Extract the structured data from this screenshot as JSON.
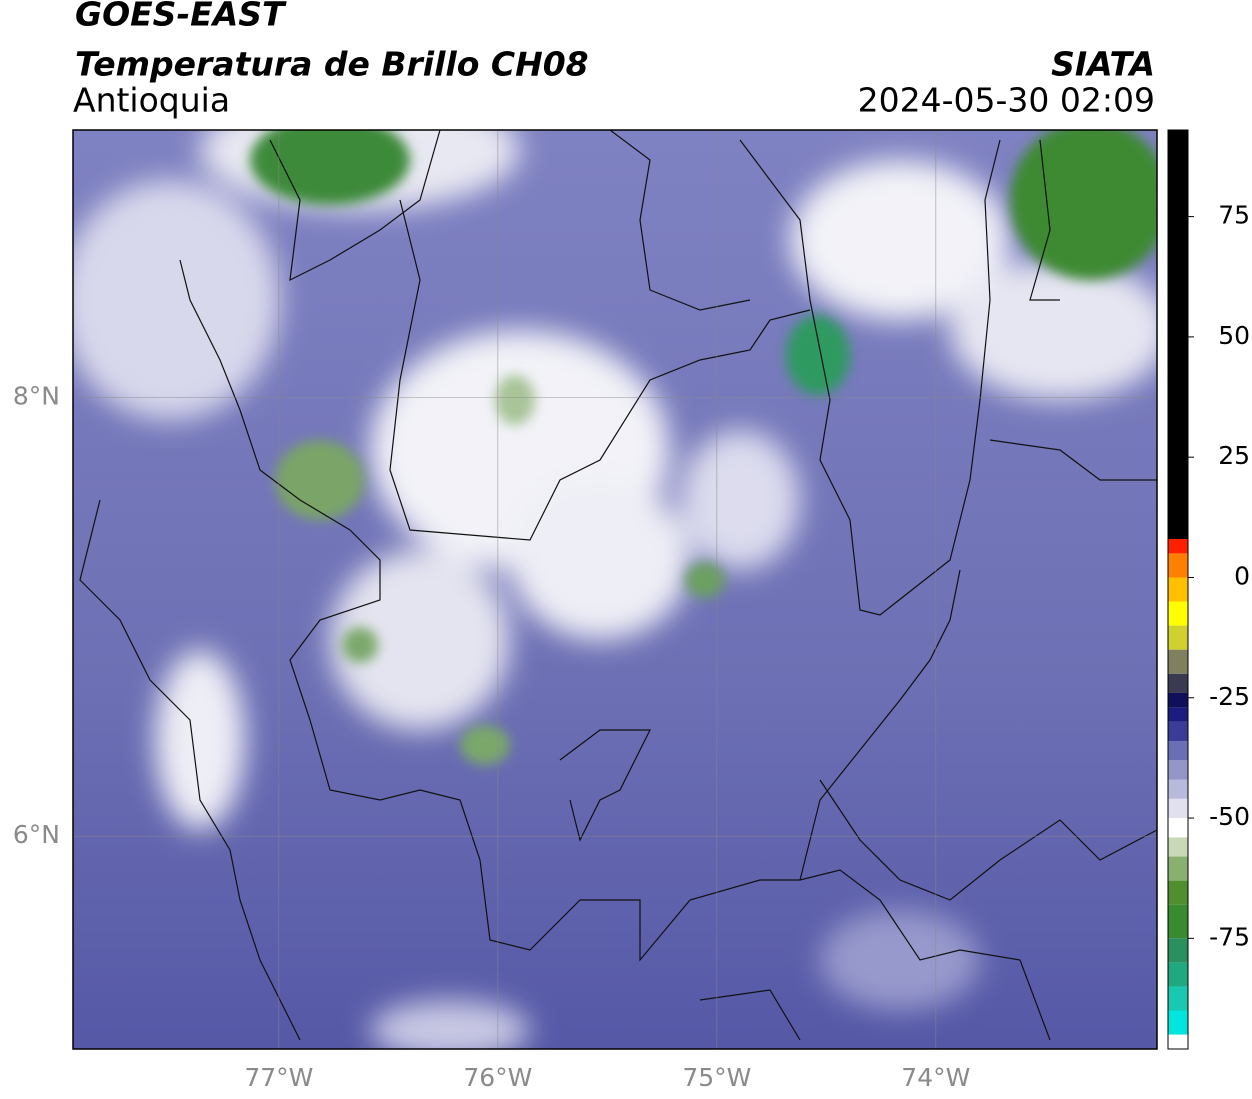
{
  "header": {
    "satellite": "GOES-EAST",
    "product": "Temperatura de Brillo CH08",
    "region": "Antioquia",
    "agency": "SIATA",
    "timestamp": "2024-05-30 02:09"
  },
  "map": {
    "xlim": [
      -77.94,
      -72.99
    ],
    "ylim": [
      5.03,
      9.22
    ],
    "xticks": [
      {
        "value": -77,
        "label": "77°W"
      },
      {
        "value": -76,
        "label": "76°W"
      },
      {
        "value": -75,
        "label": "75°W"
      },
      {
        "value": -74,
        "label": "74°W"
      }
    ],
    "yticks": [
      {
        "value": 6,
        "label": "6°N"
      },
      {
        "value": 8,
        "label": "8°N"
      }
    ],
    "grid": true
  },
  "colorbar": {
    "lim": [
      -98,
      93
    ],
    "ticks": [
      -75,
      -50,
      -25,
      0,
      25,
      50,
      75
    ],
    "stops": [
      {
        "value": -98,
        "color": "#ffffff"
      },
      {
        "value": -95,
        "color": "#00e5dc"
      },
      {
        "value": -90,
        "color": "#18c8b0"
      },
      {
        "value": -85,
        "color": "#20a880"
      },
      {
        "value": -80,
        "color": "#2a9060"
      },
      {
        "value": -75,
        "color": "#3a8a30"
      },
      {
        "value": -68,
        "color": "#4f8f30"
      },
      {
        "value": -63,
        "color": "#8ab070"
      },
      {
        "value": -58,
        "color": "#c8d8b8"
      },
      {
        "value": -54,
        "color": "#ffffff"
      },
      {
        "value": -50,
        "color": "#e0e0ee"
      },
      {
        "value": -46,
        "color": "#b8badb"
      },
      {
        "value": -42,
        "color": "#9496c8"
      },
      {
        "value": -38,
        "color": "#6a6eb5"
      },
      {
        "value": -34,
        "color": "#3a3c98"
      },
      {
        "value": -30,
        "color": "#1c1c80"
      },
      {
        "value": -27,
        "color": "#10105a"
      },
      {
        "value": -24,
        "color": "#3a3a50"
      },
      {
        "value": -20,
        "color": "#808060"
      },
      {
        "value": -15,
        "color": "#d0d030"
      },
      {
        "value": -10,
        "color": "#ffff00"
      },
      {
        "value": -5,
        "color": "#ffc000"
      },
      {
        "value": 0,
        "color": "#ff8000"
      },
      {
        "value": 5,
        "color": "#ff2000"
      },
      {
        "value": 8,
        "color": "#000000"
      }
    ]
  }
}
